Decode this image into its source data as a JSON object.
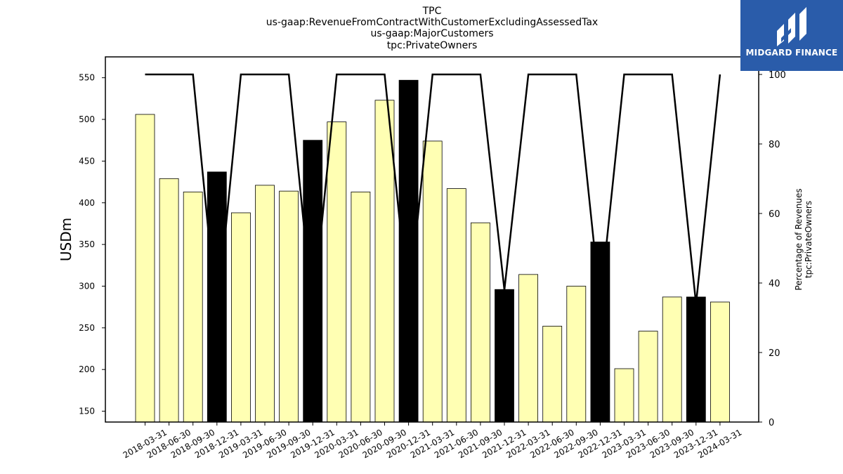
{
  "chart_data": {
    "type": "bar",
    "title": [
      "TPC",
      "us-gaap:RevenueFromContractWithCustomerExcludingAssessedTax",
      "us-gaap:MajorCustomers",
      "tpc:PrivateOwners"
    ],
    "ylabel": "USDm",
    "ylabel_right": [
      "Percentage of Revenues",
      "tpc:PrivateOwners"
    ],
    "ylim": [
      137,
      575
    ],
    "y_ticks": [
      150,
      200,
      250,
      300,
      350,
      400,
      450,
      500,
      550
    ],
    "ylim_right": [
      0,
      100
    ],
    "y_ticks_right": [
      0,
      20,
      40,
      60,
      80,
      100
    ],
    "categories": [
      "2018-03-31",
      "2018-06-30",
      "2018-09-30",
      "2018-12-31",
      "2019-03-31",
      "2019-06-30",
      "2019-09-30",
      "2019-12-31",
      "2020-03-31",
      "2020-06-30",
      "2020-09-30",
      "2020-12-31",
      "2021-03-31",
      "2021-06-30",
      "2021-09-30",
      "2021-12-31",
      "2022-03-31",
      "2022-06-30",
      "2022-09-30",
      "2022-12-31",
      "2023-03-31",
      "2023-06-30",
      "2023-09-30",
      "2023-12-31",
      "2024-03-31"
    ],
    "values": [
      506,
      429,
      413,
      437,
      388,
      421,
      414,
      475,
      497,
      413,
      523,
      547,
      474,
      417,
      376,
      296,
      314,
      252,
      300,
      353,
      201,
      246,
      287,
      287,
      281
    ],
    "bar_colors": [
      "#ffffb3",
      "#ffffb3",
      "#ffffb3",
      "#000000",
      "#ffffb3",
      "#ffffb3",
      "#ffffb3",
      "#000000",
      "#ffffb3",
      "#ffffb3",
      "#ffffb3",
      "#000000",
      "#ffffb3",
      "#ffffb3",
      "#ffffb3",
      "#000000",
      "#ffffb3",
      "#ffffb3",
      "#ffffb3",
      "#000000",
      "#ffffb3",
      "#ffffb3",
      "#ffffb3",
      "#000000",
      "#ffffb3"
    ],
    "series": [
      {
        "axis": "right",
        "type": "line",
        "color": "#000000",
        "values": [
          100,
          100,
          100,
          30,
          100,
          100,
          100,
          31,
          100,
          100,
          100,
          33,
          100,
          100,
          100,
          38,
          100,
          100,
          100,
          34,
          100,
          100,
          100,
          34,
          100
        ]
      }
    ],
    "grid": false,
    "legend": "none"
  },
  "logo": {
    "text": "MIDGARD FINANCE",
    "color": "#2a5caa"
  }
}
